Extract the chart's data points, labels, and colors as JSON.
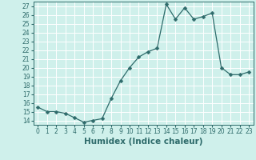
{
  "x": [
    0,
    1,
    2,
    3,
    4,
    5,
    6,
    7,
    8,
    9,
    10,
    11,
    12,
    13,
    14,
    15,
    16,
    17,
    18,
    19,
    20,
    21,
    22,
    23
  ],
  "y": [
    15.5,
    15.0,
    15.0,
    14.8,
    14.3,
    13.8,
    14.0,
    14.2,
    16.5,
    18.5,
    20.0,
    21.2,
    21.8,
    22.2,
    27.2,
    25.5,
    26.8,
    25.5,
    25.8,
    26.2,
    20.0,
    19.2,
    19.2,
    19.5
  ],
  "line_color": "#2e6b6b",
  "marker": "D",
  "marker_size": 2.5,
  "bg_color": "#cff0eb",
  "grid_color": "#ffffff",
  "xlabel": "Humidex (Indice chaleur)",
  "xlim": [
    -0.5,
    23.5
  ],
  "ylim": [
    13.5,
    27.5
  ],
  "yticks": [
    14,
    15,
    16,
    17,
    18,
    19,
    20,
    21,
    22,
    23,
    24,
    25,
    26,
    27
  ],
  "xticks": [
    0,
    1,
    2,
    3,
    4,
    5,
    6,
    7,
    8,
    9,
    10,
    11,
    12,
    13,
    14,
    15,
    16,
    17,
    18,
    19,
    20,
    21,
    22,
    23
  ],
  "tick_fontsize": 5.5,
  "xlabel_fontsize": 7.5
}
